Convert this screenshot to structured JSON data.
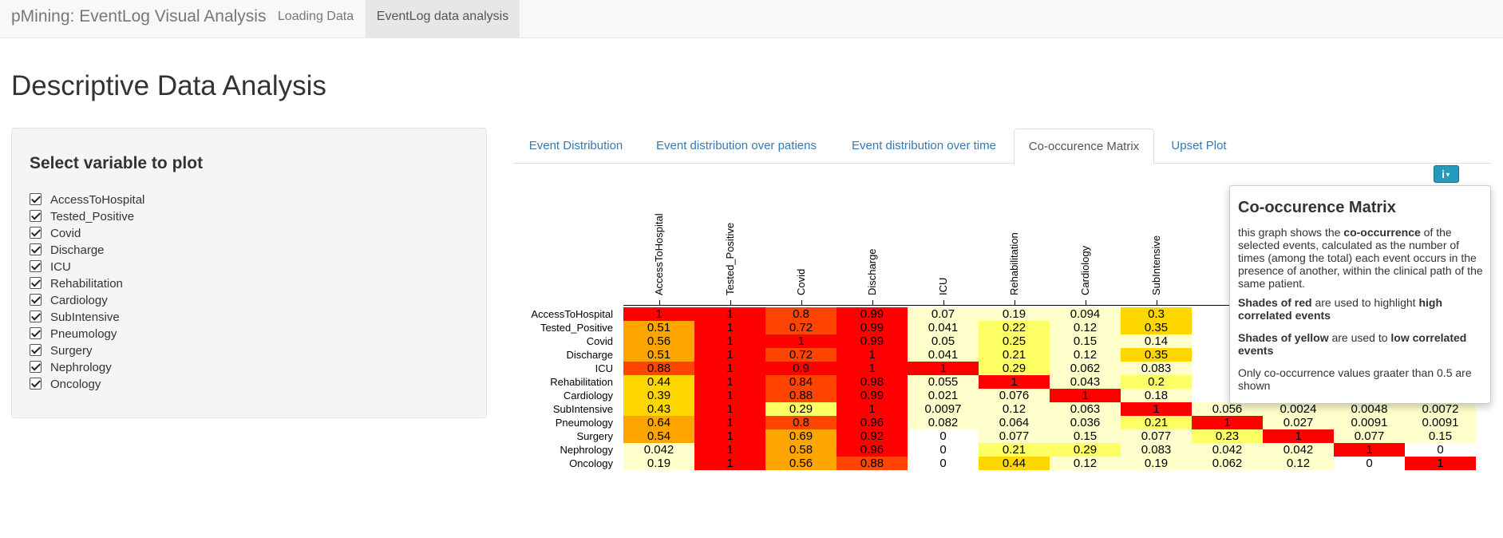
{
  "app": {
    "brand": "pMining: EventLog Visual Analysis",
    "nav": [
      {
        "label": "Loading Data",
        "active": false
      },
      {
        "label": "EventLog data analysis",
        "active": true
      }
    ]
  },
  "page": {
    "title": "Descriptive Data Analysis"
  },
  "sidebar": {
    "heading": "Select variable to plot",
    "variables": [
      {
        "label": "AccessToHospital",
        "checked": true
      },
      {
        "label": "Tested_Positive",
        "checked": true
      },
      {
        "label": "Covid",
        "checked": true
      },
      {
        "label": "Discharge",
        "checked": true
      },
      {
        "label": "ICU",
        "checked": true
      },
      {
        "label": "Rehabilitation",
        "checked": true
      },
      {
        "label": "Cardiology",
        "checked": true
      },
      {
        "label": "SubIntensive",
        "checked": true
      },
      {
        "label": "Pneumology",
        "checked": true
      },
      {
        "label": "Surgery",
        "checked": true
      },
      {
        "label": "Nephrology",
        "checked": true
      },
      {
        "label": "Oncology",
        "checked": true
      }
    ]
  },
  "tabs": [
    {
      "label": "Event Distribution",
      "active": false
    },
    {
      "label": "Event distribution over patiens",
      "active": false
    },
    {
      "label": "Event distribution over time",
      "active": false
    },
    {
      "label": "Co-occurence Matrix",
      "active": true
    },
    {
      "label": "Upset Plot",
      "active": false
    }
  ],
  "info_button": {
    "icon": "info-icon"
  },
  "popover": {
    "title": "Co-occurence Matrix",
    "p1_pre": "this graph shows the ",
    "p1_bold": "co-occurrence",
    "p1_post": " of the selected events, calculated as the number of times (among the total) each event occurs in the presence of another, within the clinical path of the same patient.",
    "p2_bold1": "Shades of red",
    "p2_mid": " are used to highlight ",
    "p2_bold2": "high correlated events",
    "p3_bold1": "Shades of yellow",
    "p3_mid": " are used to ",
    "p3_bold2": "low correlated events",
    "p4": "Only co-occurrence values graater than 0.5 are shown"
  },
  "colors": {
    "high": "#ff0000",
    "mid_high": "#ff4500",
    "mid": "#ffa500",
    "low_mid": "#ffd700",
    "low": "#ffff66",
    "very_low": "#ffffcc",
    "zero": "#ffffff"
  },
  "chart_data": {
    "type": "heatmap",
    "rows": [
      "AccessToHospital",
      "Tested_Positive",
      "Covid",
      "Discharge",
      "ICU",
      "Rehabilitation",
      "Cardiology",
      "SubIntensive",
      "Pneumology",
      "Surgery",
      "Nephrology",
      "Oncology"
    ],
    "columns": [
      "AccessToHospital",
      "Tested_Positive",
      "Covid",
      "Discharge",
      "ICU",
      "Rehabilitation",
      "Cardiology",
      "SubIntensive",
      "Pneumology",
      "Surgery",
      "Nephrology",
      "Oncology"
    ],
    "visible_columns_labeled": 8,
    "values": [
      [
        "1",
        "1",
        "0.8",
        "0.99",
        "0.07",
        "0.19",
        "0.094",
        "0.3",
        "",
        "",
        "",
        ""
      ],
      [
        "0.51",
        "1",
        "0.72",
        "0.99",
        "0.041",
        "0.22",
        "0.12",
        "0.35",
        "",
        "",
        "",
        ""
      ],
      [
        "0.56",
        "1",
        "1",
        "0.99",
        "0.05",
        "0.25",
        "0.15",
        "0.14",
        "",
        "",
        "",
        ""
      ],
      [
        "0.51",
        "1",
        "0.72",
        "1",
        "0.041",
        "0.21",
        "0.12",
        "0.35",
        "",
        "",
        "",
        ""
      ],
      [
        "0.88",
        "1",
        "0.9",
        "1",
        "1",
        "0.29",
        "0.062",
        "0.083",
        "",
        "",
        "",
        ""
      ],
      [
        "0.44",
        "1",
        "0.84",
        "0.98",
        "0.055",
        "1",
        "0.043",
        "0.2",
        "",
        "",
        "",
        ""
      ],
      [
        "0.39",
        "1",
        "0.88",
        "0.99",
        "0.021",
        "0.076",
        "1",
        "0.18",
        "",
        "",
        "",
        ""
      ],
      [
        "0.43",
        "1",
        "0.29",
        "1",
        "0.0097",
        "0.12",
        "0.063",
        "1",
        "0.056",
        "0.0024",
        "0.0048",
        "0.0072"
      ],
      [
        "0.64",
        "1",
        "0.8",
        "0.96",
        "0.082",
        "0.064",
        "0.036",
        "0.21",
        "1",
        "0.027",
        "0.0091",
        "0.0091"
      ],
      [
        "0.54",
        "1",
        "0.69",
        "0.92",
        "0",
        "0.077",
        "0.15",
        "0.077",
        "0.23",
        "1",
        "0.077",
        "0.15"
      ],
      [
        "0.042",
        "1",
        "0.58",
        "0.96",
        "0",
        "0.21",
        "0.29",
        "0.083",
        "0.042",
        "0.042",
        "1",
        "0"
      ],
      [
        "0.19",
        "1",
        "0.56",
        "0.88",
        "0",
        "0.44",
        "0.12",
        "0.19",
        "0.062",
        "0.12",
        "0",
        "1"
      ]
    ],
    "color_scale": "yellow (low) to red (high)"
  }
}
